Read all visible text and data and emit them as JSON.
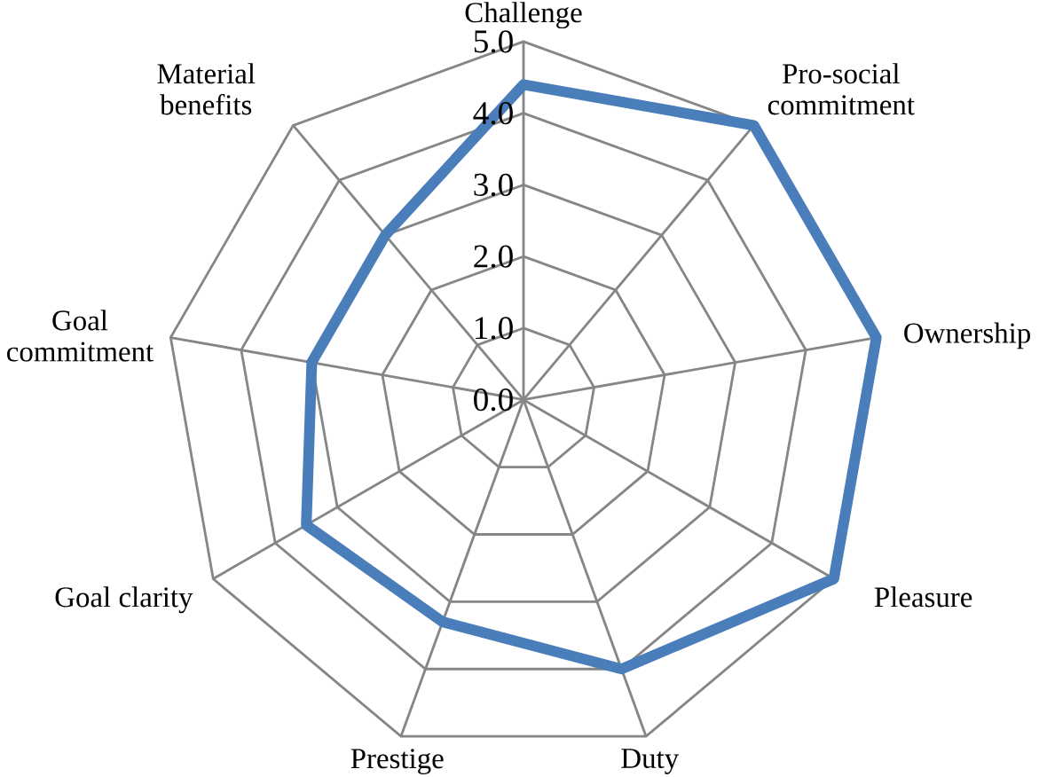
{
  "chart_data": {
    "type": "radar",
    "categories": [
      "Challenge",
      "Pro-social commitment",
      "Ownership",
      "Pleasure",
      "Duty",
      "Prestige",
      "Goal clarity",
      "Goal commitment",
      "Material benefits"
    ],
    "series": [
      {
        "color": "#4a7ebb",
        "values": [
          4.4,
          5.0,
          5.0,
          5.0,
          4.0,
          3.3,
          3.5,
          3.0,
          3.0
        ]
      }
    ],
    "ylim": [
      0,
      5
    ],
    "yticks": [
      {
        "value": 0,
        "label": "0.0"
      },
      {
        "value": 1,
        "label": "1.0"
      },
      {
        "value": 2,
        "label": "2.0"
      },
      {
        "value": 3,
        "label": "3.0"
      },
      {
        "value": 4,
        "label": "4.0"
      },
      {
        "value": 5,
        "label": "5.0"
      }
    ],
    "grid": true
  }
}
